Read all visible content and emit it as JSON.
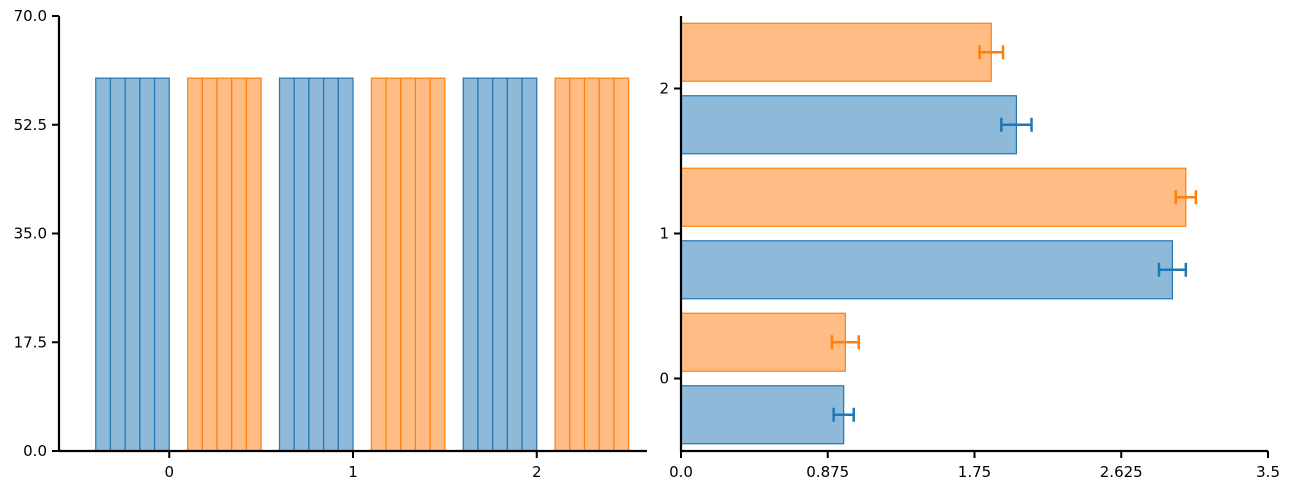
{
  "colors": {
    "blue_fill": "#8fb9d9",
    "blue_edge": "#1f77b4",
    "orange_fill": "#ffbc85",
    "orange_edge": "#ff7f0e"
  },
  "chart_data": [
    {
      "type": "bar",
      "orientation": "vertical",
      "title": "",
      "xlabel": "",
      "ylabel": "",
      "ylim": [
        0,
        70
      ],
      "xlim": [
        -0.6,
        2.6
      ],
      "yticks": [
        0.0,
        17.5,
        35.0,
        52.5,
        70.0
      ],
      "ytick_labels": [
        "0.0",
        "17.5",
        "35.0",
        "52.5",
        "70.0"
      ],
      "xticks": [
        0,
        1,
        2
      ],
      "xtick_labels": [
        "0",
        "1",
        "2"
      ],
      "bar_height": 60,
      "groups": [
        {
          "color": "blue",
          "bars_x": [
            -0.36,
            -0.28,
            -0.2,
            -0.12,
            -0.04
          ]
        },
        {
          "color": "orange",
          "bars_x": [
            0.14,
            0.22,
            0.3,
            0.38,
            0.46
          ]
        },
        {
          "color": "blue",
          "bars_x": [
            0.64,
            0.72,
            0.8,
            0.88,
            0.96
          ]
        },
        {
          "color": "orange",
          "bars_x": [
            1.14,
            1.22,
            1.3,
            1.38,
            1.46
          ]
        },
        {
          "color": "blue",
          "bars_x": [
            1.64,
            1.72,
            1.8,
            1.88,
            1.96
          ]
        },
        {
          "color": "orange",
          "bars_x": [
            2.14,
            2.22,
            2.3,
            2.38,
            2.46
          ]
        }
      ],
      "bar_width": 0.08,
      "grid": false,
      "legend": "none"
    },
    {
      "type": "bar",
      "orientation": "horizontal",
      "title": "",
      "xlabel": "",
      "ylabel": "",
      "xlim": [
        0,
        3.5
      ],
      "ylim": [
        -0.5,
        2.5
      ],
      "xticks": [
        0.0,
        0.875,
        1.75,
        2.625,
        3.5
      ],
      "xtick_labels": [
        "0.0",
        "0.875",
        "1.75",
        "2.625",
        "3.5"
      ],
      "yticks": [
        0,
        1,
        2
      ],
      "ytick_labels": [
        "0",
        "1",
        "2"
      ],
      "bar_height": 0.4,
      "series": [
        {
          "color": "blue",
          "y": [
            -0.25,
            0.75,
            1.75
          ],
          "values": [
            0.97,
            2.93,
            2.0
          ],
          "errors": [
            0.06,
            0.08,
            0.09
          ]
        },
        {
          "color": "orange",
          "y": [
            0.25,
            1.25,
            2.25
          ],
          "values": [
            0.98,
            3.01,
            1.85
          ],
          "errors": [
            0.08,
            0.06,
            0.07
          ]
        }
      ],
      "grid": false,
      "legend": "none"
    }
  ]
}
